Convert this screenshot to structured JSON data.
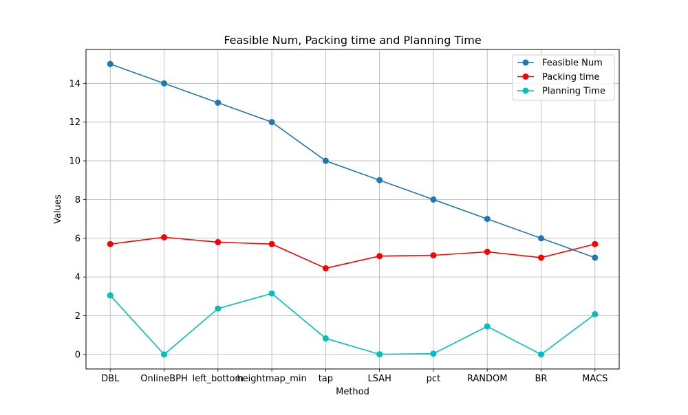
{
  "chart_data": {
    "type": "line",
    "title": "Feasible Num, Packing time and Planning Time",
    "xlabel": "Method",
    "ylabel": "Values",
    "categories": [
      "DBL",
      "OnlineBPH",
      "left_bottom",
      "heightmap_min",
      "tap",
      "LSAH",
      "pct",
      "RANDOM",
      "BR",
      "MACS"
    ],
    "yticks": [
      0,
      2,
      4,
      6,
      8,
      10,
      12,
      14
    ],
    "ylim": [
      -0.75,
      15.75
    ],
    "grid": true,
    "legend_position": "top-right",
    "series": [
      {
        "name": "Feasible Num",
        "color": "#1f77b4",
        "values": [
          15,
          14,
          13,
          12,
          10,
          9,
          8,
          7,
          6,
          5
        ]
      },
      {
        "name": "Packing time",
        "color": "#ff0000",
        "values": [
          5.7,
          6.05,
          5.8,
          5.7,
          4.45,
          5.08,
          5.12,
          5.3,
          5.0,
          5.7
        ]
      },
      {
        "name": "Planning Time",
        "color": "#00bfbf",
        "values": [
          3.05,
          0.0,
          2.37,
          3.15,
          0.83,
          0.01,
          0.04,
          1.45,
          0.0,
          2.08
        ]
      }
    ]
  }
}
